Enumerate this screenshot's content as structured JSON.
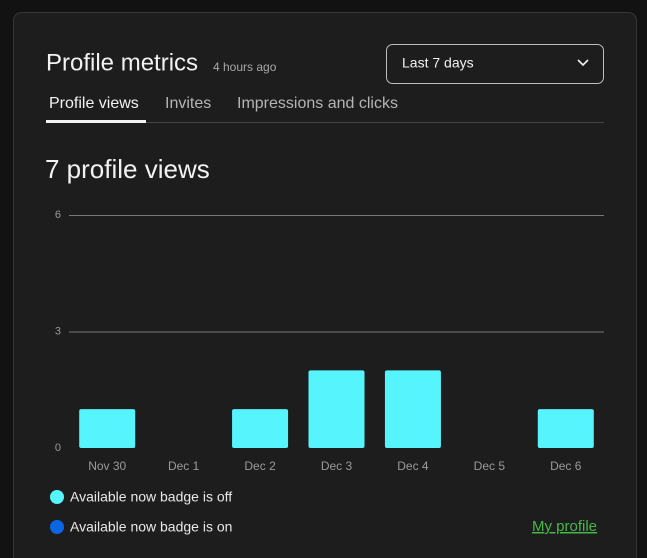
{
  "header": {
    "title": "Profile metrics",
    "timestamp": "4 hours ago",
    "dropdown": "Last 7 days"
  },
  "tabs": [
    "Profile views",
    "Invites",
    "Impressions and clicks"
  ],
  "summary": "7 profile views",
  "chart_data": {
    "type": "bar",
    "stacked": true,
    "categories": [
      "Nov 30",
      "Dec 1",
      "Dec 2",
      "Dec 3",
      "Dec 4",
      "Dec 5",
      "Dec 6"
    ],
    "series": [
      {
        "name": "Available now badge is off",
        "color": "#56f5fe",
        "values": [
          1,
          0,
          1,
          2,
          2,
          0,
          1
        ]
      },
      {
        "name": "Available now badge is on",
        "color": "#0b66e4",
        "values": [
          0,
          0,
          0,
          0,
          0,
          0,
          0
        ]
      }
    ],
    "ylim": [
      0,
      6
    ],
    "yticks": [
      0,
      3,
      6
    ],
    "grid": true
  },
  "link": "My profile"
}
